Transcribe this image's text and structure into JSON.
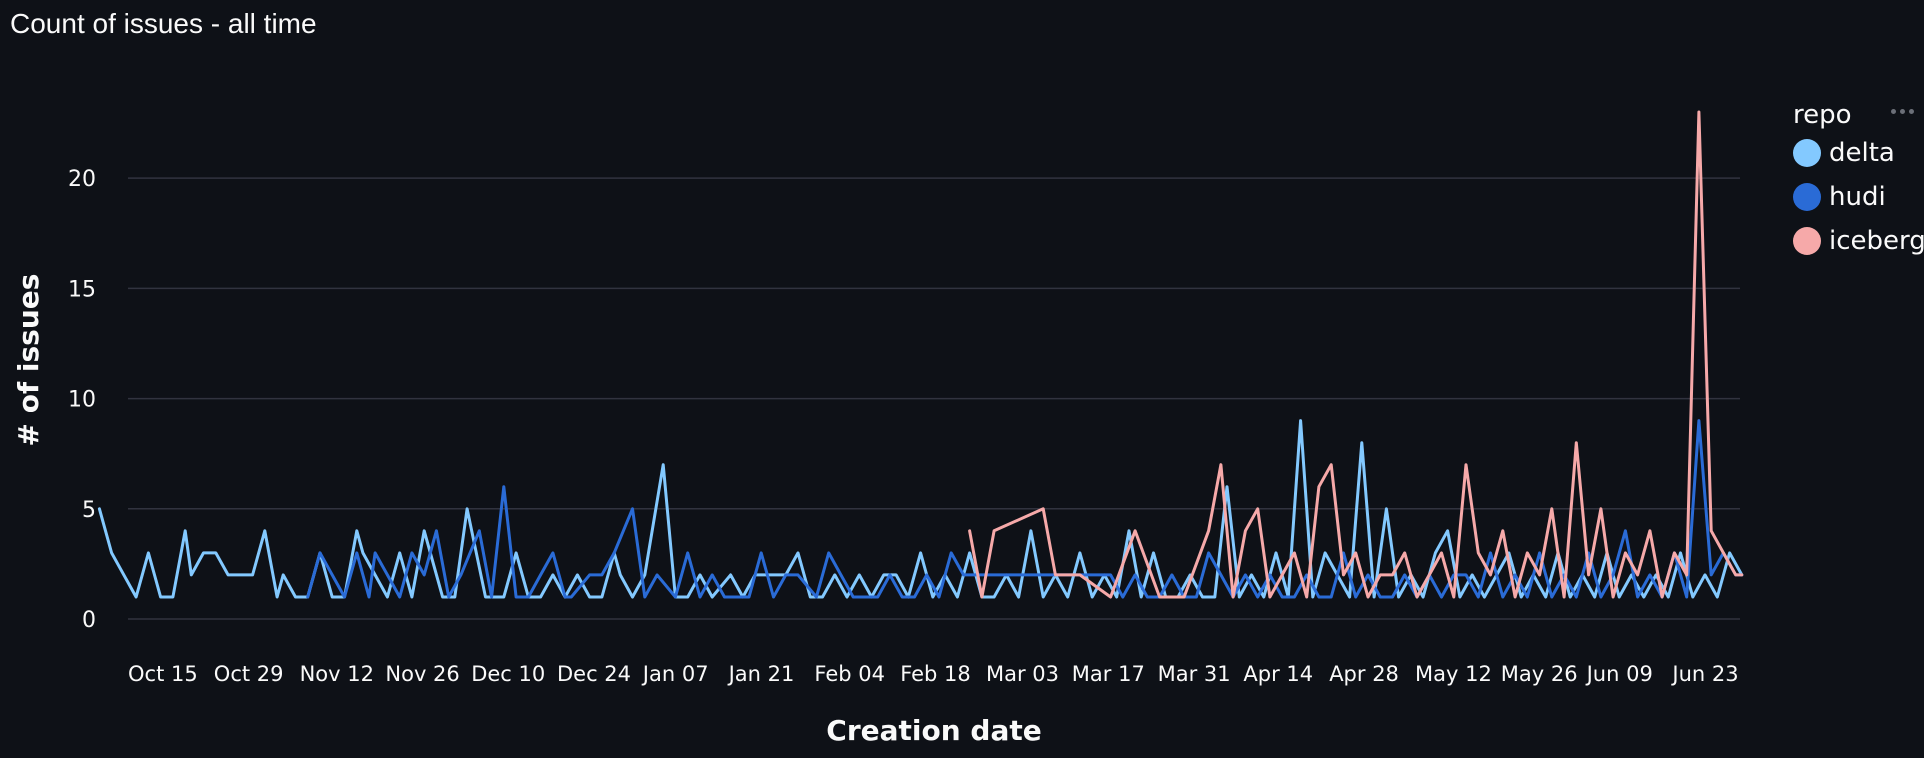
{
  "colors": {
    "background": "#0e1117",
    "grid": "#31333f",
    "text": "#fafafa",
    "delta": "#83c9ff",
    "hudi": "#2a6bd6",
    "iceberg": "#f6a9a9"
  },
  "chart_data": {
    "type": "line",
    "title": "Count of issues - all time",
    "xlabel": "Creation date",
    "ylabel": "# of issues",
    "ylim": [
      0,
      23
    ],
    "yticks": [
      0,
      5,
      10,
      15,
      20
    ],
    "xtick_labels": [
      "Oct 15",
      "Oct 29",
      "Nov 12",
      "Nov 26",
      "Dec 10",
      "Dec 24",
      "Jan 07",
      "Jan 21",
      "Feb 04",
      "Feb 18",
      "Mar 03",
      "Mar 17",
      "Mar 31",
      "Apr 14",
      "Apr 28",
      "May 12",
      "May 26",
      "Jun 09",
      "Jun 23"
    ],
    "x_start_date": "Oct 15",
    "grid": true,
    "legend_title": "repo",
    "legend_position": "right",
    "series": [
      {
        "name": "delta",
        "color": "#83c9ff",
        "x": [
          -5,
          -3,
          1,
          3,
          5,
          7,
          9,
          10,
          12,
          14,
          16,
          18,
          20,
          22,
          24,
          25,
          27,
          29,
          31,
          33,
          35,
          37,
          38,
          40,
          42,
          44,
          46,
          48,
          51,
          53,
          55,
          58,
          61,
          63,
          65,
          67,
          69,
          71,
          73,
          75,
          77,
          79,
          80,
          82,
          84,
          87,
          89,
          91,
          93,
          95,
          98,
          100,
          102,
          104,
          107,
          109,
          111,
          113,
          115,
          117,
          119,
          121,
          123,
          125,
          127,
          129,
          131,
          133,
          135,
          137,
          139,
          141,
          143,
          145,
          147,
          149,
          151,
          153,
          155,
          157,
          159,
          161,
          163,
          165,
          167,
          169,
          171,
          173,
          175,
          177,
          179,
          181,
          183,
          185,
          187,
          189,
          191,
          193,
          195,
          197,
          199,
          201,
          203,
          205,
          207,
          209,
          211,
          213,
          215,
          217,
          219,
          221,
          223,
          225,
          227,
          229,
          231,
          233,
          235,
          237,
          239,
          241,
          243,
          245,
          247,
          249,
          251,
          253,
          255,
          257,
          259,
          261,
          263
        ],
        "y": [
          5,
          3,
          1,
          3,
          1,
          1,
          4,
          2,
          3,
          3,
          2,
          2,
          2,
          4,
          1,
          2,
          1,
          1,
          3,
          1,
          1,
          4,
          3,
          2,
          1,
          3,
          1,
          4,
          1,
          1,
          5,
          1,
          1,
          3,
          1,
          1,
          2,
          1,
          2,
          1,
          1,
          3,
          2,
          1,
          2,
          7,
          1,
          1,
          2,
          1,
          2,
          1,
          2,
          2,
          2,
          3,
          1,
          1,
          2,
          1,
          2,
          1,
          2,
          2,
          1,
          3,
          1,
          2,
          1,
          3,
          1,
          1,
          2,
          1,
          4,
          1,
          2,
          1,
          3,
          1,
          2,
          1,
          4,
          1,
          3,
          1,
          1,
          2,
          1,
          1,
          6,
          1,
          2,
          1,
          3,
          1,
          9,
          1,
          3,
          2,
          1,
          8,
          1,
          5,
          1,
          2,
          1,
          3,
          4,
          1,
          2,
          1,
          2,
          3,
          1,
          2,
          1,
          3,
          1,
          2,
          1,
          3,
          1,
          2,
          1,
          2,
          1,
          3,
          1,
          2,
          1,
          3,
          2
        ]
      },
      {
        "name": "hudi",
        "color": "#2a6bd6",
        "x": [
          29,
          31,
          33,
          35,
          37,
          39,
          40,
          42,
          44,
          46,
          48,
          50,
          52,
          54,
          57,
          59,
          61,
          63,
          65,
          67,
          69,
          71,
          72,
          75,
          77,
          79,
          82,
          84,
          86,
          89,
          91,
          93,
          95,
          97,
          99,
          101,
          103,
          105,
          107,
          109,
          112,
          114,
          116,
          118,
          120,
          122,
          124,
          126,
          128,
          130,
          132,
          134,
          136,
          138,
          140,
          142,
          144,
          146,
          148,
          150,
          152,
          154,
          156,
          158,
          160,
          162,
          164,
          166,
          168,
          170,
          172,
          174,
          176,
          178,
          180,
          182,
          184,
          186,
          188,
          190,
          192,
          194,
          196,
          198,
          200,
          202,
          204,
          206,
          208,
          210,
          212,
          214,
          216,
          218,
          220,
          222,
          224,
          226,
          228,
          230,
          232,
          234,
          236,
          238,
          240,
          242,
          244,
          246,
          248,
          250,
          252,
          254,
          256,
          258,
          260,
          262,
          263
        ],
        "y": [
          1,
          3,
          2,
          1,
          3,
          1,
          3,
          2,
          1,
          3,
          2,
          4,
          1,
          2,
          4,
          1,
          6,
          1,
          1,
          2,
          3,
          1,
          1,
          2,
          2,
          3,
          5,
          1,
          2,
          1,
          3,
          1,
          2,
          1,
          1,
          1,
          3,
          1,
          2,
          2,
          1,
          3,
          2,
          1,
          1,
          1,
          2,
          1,
          1,
          2,
          1,
          3,
          2,
          2,
          2,
          2,
          2,
          2,
          2,
          2,
          2,
          2,
          2,
          2,
          2,
          1,
          2,
          1,
          1,
          2,
          1,
          1,
          3,
          2,
          1,
          2,
          1,
          2,
          1,
          1,
          2,
          1,
          1,
          3,
          1,
          2,
          1,
          1,
          2,
          1,
          2,
          1,
          2,
          2,
          1,
          3,
          1,
          2,
          1,
          3,
          1,
          2,
          1,
          3,
          1,
          2,
          4,
          1,
          2,
          1,
          3,
          1,
          9,
          2,
          3,
          2,
          2
        ]
      },
      {
        "name": "iceberg",
        "color": "#f6a9a9",
        "x": [
          137,
          139,
          141,
          149,
          151,
          155,
          160,
          164,
          168,
          172,
          176,
          178,
          180,
          182,
          184,
          186,
          188,
          190,
          192,
          194,
          196,
          198,
          200,
          202,
          204,
          206,
          208,
          210,
          212,
          214,
          216,
          218,
          220,
          222,
          224,
          226,
          228,
          230,
          232,
          234,
          236,
          238,
          240,
          242,
          244,
          246,
          248,
          250,
          252,
          254,
          256,
          258,
          260,
          262,
          263
        ],
        "y": [
          4,
          1,
          4,
          5,
          2,
          2,
          1,
          4,
          1,
          1,
          4,
          7,
          1,
          4,
          5,
          1,
          2,
          3,
          1,
          6,
          7,
          2,
          3,
          1,
          2,
          2,
          3,
          1,
          2,
          3,
          1,
          7,
          3,
          2,
          4,
          1,
          3,
          2,
          5,
          1,
          8,
          2,
          5,
          1,
          3,
          2,
          4,
          1,
          3,
          2,
          23,
          4,
          3,
          2,
          2
        ]
      }
    ]
  }
}
